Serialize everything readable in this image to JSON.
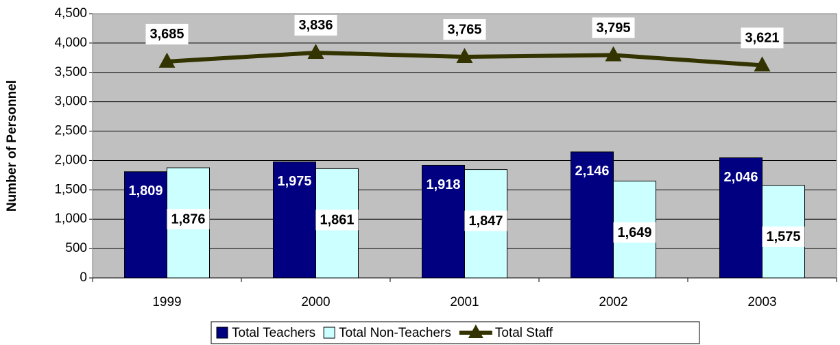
{
  "chart_data": {
    "type": "bar-line",
    "y_label": "Number of Personnel",
    "categories": [
      "1999",
      "2000",
      "2001",
      "2002",
      "2003"
    ],
    "series": [
      {
        "name": "Total Teachers",
        "type": "bar",
        "color": "#000080",
        "values": [
          1809,
          1975,
          1918,
          2146,
          2046
        ],
        "value_labels": [
          "1,809",
          "1,975",
          "1,918",
          "2,146",
          "2,046"
        ]
      },
      {
        "name": "Total Non-Teachers",
        "type": "bar",
        "color": "#ccffff",
        "values": [
          1876,
          1861,
          1847,
          1649,
          1575
        ],
        "value_labels": [
          "1,876",
          "1,861",
          "1,847",
          "1,649",
          "1,575"
        ]
      },
      {
        "name": "Total Staff",
        "type": "line",
        "color": "#333300",
        "values": [
          3685,
          3836,
          3765,
          3795,
          3621
        ],
        "value_labels": [
          "3,685",
          "3,836",
          "3,765",
          "3,795",
          "3,621"
        ]
      }
    ],
    "ylim": [
      0,
      4500
    ],
    "yticks": [
      0,
      500,
      {
        "value": 1000,
        "label": "1,000"
      },
      {
        "value": 1500,
        "label": "1,500"
      },
      {
        "value": 2000,
        "label": "2,000"
      },
      {
        "value": 2500,
        "label": "2,500"
      },
      {
        "value": 3000,
        "label": "3,000"
      },
      {
        "value": 3500,
        "label": "3,500"
      },
      {
        "value": 4000,
        "label": "4,000"
      },
      {
        "value": 4500,
        "label": "4,500"
      }
    ],
    "grid": true,
    "plot_background": "#c0c0c0",
    "legend": "bottom"
  }
}
